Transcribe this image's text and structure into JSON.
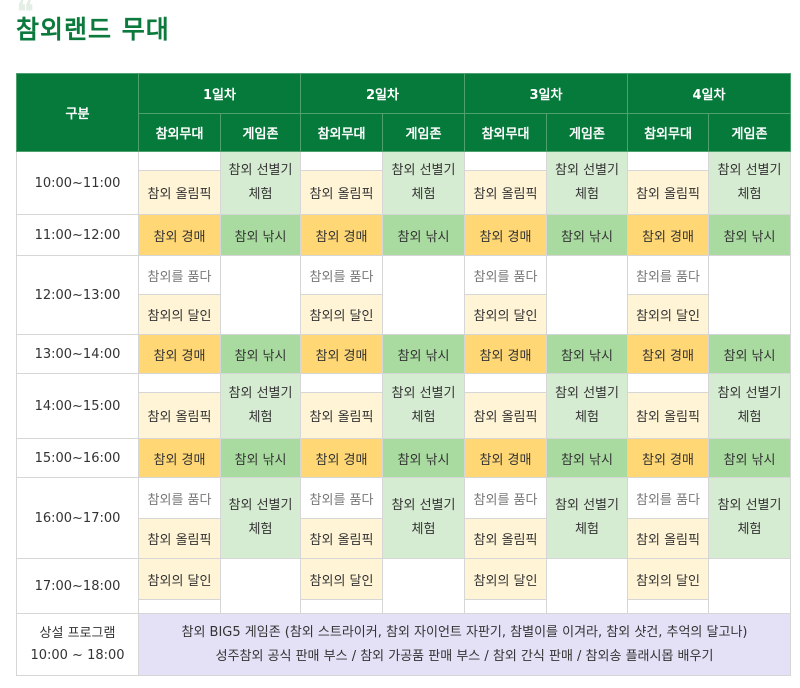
{
  "page": {
    "title": "참외랜드 무대"
  },
  "header": {
    "category": "구분",
    "days": [
      "1일차",
      "2일차",
      "3일차",
      "4일차"
    ],
    "stage": "참외무대",
    "gamezone": "게임존"
  },
  "programs": {
    "olympic": "참외 올림픽",
    "auction": "참외 경매",
    "fishing": "참외 낚시",
    "sorter": "참외 선별기\n체험",
    "quiz": "참외를 품다",
    "master": "참외의 달인"
  },
  "times": [
    "10:00~11:00",
    "11:00~12:00",
    "12:00~13:00",
    "13:00~14:00",
    "14:00~15:00",
    "15:00~16:00",
    "16:00~17:00",
    "17:00~18:00"
  ],
  "special": {
    "label": "상설 프로그램",
    "time": "10:00 ~ 18:00",
    "line1": "참외 BIG5 게임존 (참외 스트라이커, 참외 자이언트 자판기, 참별이를 이겨라, 참외 샷건, 추억의 달고나)",
    "line2": "성주참외 공식 판매 부스 / 참외 가공품 판매 부스 / 참외 간식 판매 / 참외송 플래시몹 배우기"
  }
}
